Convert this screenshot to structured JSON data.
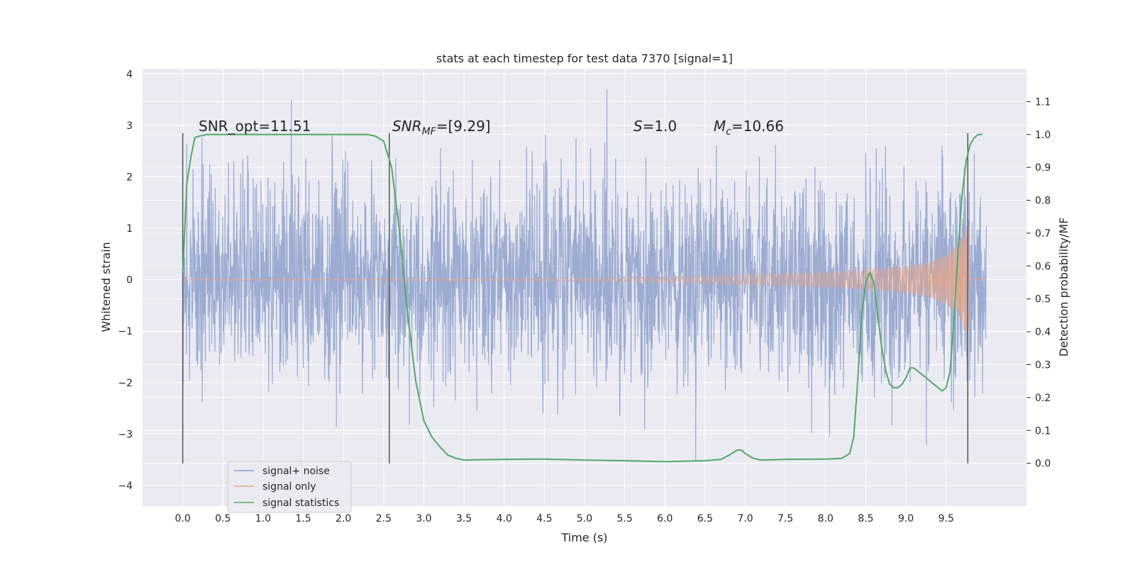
{
  "chart_data": {
    "type": "line",
    "title": "stats at each timestep for test data 7370 [signal=1]",
    "xlabel": "Time (s)",
    "ylabel": "Whitened strain",
    "y2label": "Detection probability/MF",
    "xlim": [
      -0.5,
      10.5
    ],
    "ylim": [
      -4.4,
      4.1
    ],
    "y2lim": [
      -0.13,
      1.2
    ],
    "x_ticks": [
      "0.0",
      "0.5",
      "1.0",
      "1.5",
      "2.0",
      "2.5",
      "3.0",
      "3.5",
      "4.0",
      "4.5",
      "5.0",
      "5.5",
      "6.0",
      "6.5",
      "7.0",
      "7.5",
      "8.0",
      "8.5",
      "9.0",
      "9.5"
    ],
    "y_ticks": [
      "4",
      "3",
      "2",
      "1",
      "0",
      "−1",
      "−2",
      "−3",
      "−4"
    ],
    "y2_ticks": [
      "1.1",
      "1.0",
      "0.9",
      "0.8",
      "0.7",
      "0.6",
      "0.5",
      "0.4",
      "0.3",
      "0.2",
      "0.1",
      "0.0"
    ],
    "grid": true,
    "legend_position": "lower-left",
    "annotations": {
      "snr_opt": "SNR_opt=11.51",
      "snr_mf_label": "SNR",
      "snr_mf_sub": "MF",
      "snr_mf_value": "=[9.29]",
      "s_label": "S",
      "s_value": "=1.0",
      "mc_label": "M",
      "mc_sub": "c",
      "mc_value": "=10.66"
    },
    "vertical_markers": [
      0.0,
      2.57,
      9.77
    ],
    "series": [
      {
        "name": "signal+ noise",
        "color": "#8da0cb",
        "axis": "left",
        "envelope": "dense noise, roughly ±2.3 typical with peaks to ±4",
        "x_range": [
          0.0,
          10.0
        ],
        "noise_std": 1.0
      },
      {
        "name": "signal only",
        "color": "#e5a588",
        "axis": "left",
        "chirp": {
          "start": 0.0,
          "end": 9.78,
          "amp_envelope": {
            "x": [
              0.0,
              5.0,
              6.0,
              7.0,
              8.0,
              8.5,
              9.0,
              9.3,
              9.5,
              9.65,
              9.75,
              9.78,
              10.0
            ],
            "y": [
              0.01,
              0.03,
              0.06,
              0.1,
              0.15,
              0.19,
              0.27,
              0.36,
              0.5,
              0.7,
              1.1,
              1.0,
              0.0
            ]
          }
        }
      },
      {
        "name": "signal statistics",
        "color": "#55a868",
        "axis": "right",
        "x": [
          0.0,
          0.05,
          0.1,
          0.15,
          0.2,
          0.3,
          0.5,
          1.0,
          1.5,
          2.0,
          2.3,
          2.4,
          2.5,
          2.6,
          2.7,
          2.8,
          2.9,
          3.0,
          3.1,
          3.2,
          3.3,
          3.4,
          3.5,
          3.7,
          4.0,
          4.5,
          5.0,
          5.5,
          6.0,
          6.5,
          6.7,
          6.8,
          6.9,
          6.95,
          7.0,
          7.1,
          7.2,
          7.5,
          8.0,
          8.2,
          8.3,
          8.35,
          8.4,
          8.45,
          8.5,
          8.55,
          8.6,
          8.65,
          8.7,
          8.75,
          8.8,
          8.85,
          8.9,
          8.95,
          9.0,
          9.05,
          9.1,
          9.15,
          9.2,
          9.3,
          9.4,
          9.45,
          9.5,
          9.55,
          9.6,
          9.65,
          9.7,
          9.75,
          9.8,
          9.85,
          9.9,
          9.95
        ],
        "values": [
          0.58,
          0.85,
          0.93,
          0.99,
          0.995,
          1.0,
          1.0,
          1.0,
          1.0,
          1.0,
          1.0,
          0.995,
          0.98,
          0.9,
          0.7,
          0.45,
          0.25,
          0.13,
          0.08,
          0.05,
          0.025,
          0.015,
          0.01,
          0.011,
          0.012,
          0.013,
          0.01,
          0.008,
          0.005,
          0.008,
          0.012,
          0.025,
          0.04,
          0.04,
          0.03,
          0.015,
          0.01,
          0.012,
          0.013,
          0.015,
          0.03,
          0.08,
          0.25,
          0.45,
          0.55,
          0.58,
          0.55,
          0.45,
          0.35,
          0.28,
          0.24,
          0.23,
          0.23,
          0.24,
          0.26,
          0.29,
          0.29,
          0.28,
          0.27,
          0.25,
          0.23,
          0.22,
          0.23,
          0.28,
          0.45,
          0.65,
          0.82,
          0.92,
          0.97,
          0.99,
          1.0,
          1.0
        ]
      }
    ]
  }
}
